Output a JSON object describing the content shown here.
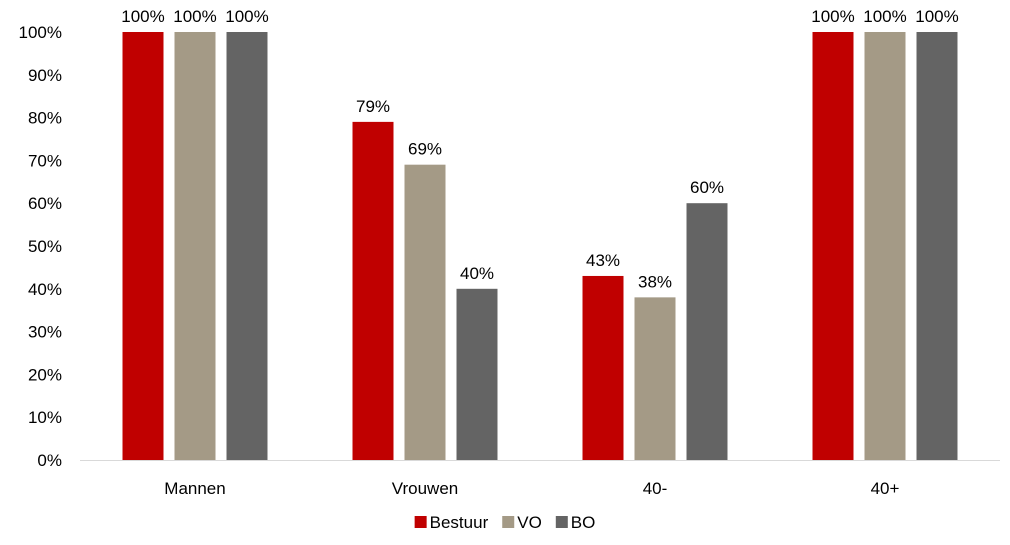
{
  "chart_data": {
    "type": "bar",
    "categories": [
      "Mannen",
      "Vrouwen",
      "40-",
      "40+"
    ],
    "series": [
      {
        "name": "Bestuur",
        "color": "#C00000",
        "values": [
          100,
          79,
          43,
          100
        ],
        "labels": [
          "100%",
          "79%",
          "43%",
          "100%"
        ]
      },
      {
        "name": "VO",
        "color": "#A49A86",
        "values": [
          100,
          69,
          38,
          100
        ],
        "labels": [
          "100%",
          "69%",
          "38%",
          "100%"
        ]
      },
      {
        "name": "BO",
        "color": "#646464",
        "values": [
          100,
          40,
          60,
          100
        ],
        "labels": [
          "100%",
          "40%",
          "60%",
          "100%"
        ]
      }
    ],
    "title": "",
    "xlabel": "",
    "ylabel": "",
    "ylim": [
      0,
      100
    ],
    "yticks": [
      0,
      10,
      20,
      30,
      40,
      50,
      60,
      70,
      80,
      90,
      100
    ],
    "ytick_labels": [
      "0%",
      "10%",
      "20%",
      "30%",
      "40%",
      "50%",
      "60%",
      "70%",
      "80%",
      "90%",
      "100%"
    ],
    "grid": false,
    "legend": "bottom-center"
  }
}
